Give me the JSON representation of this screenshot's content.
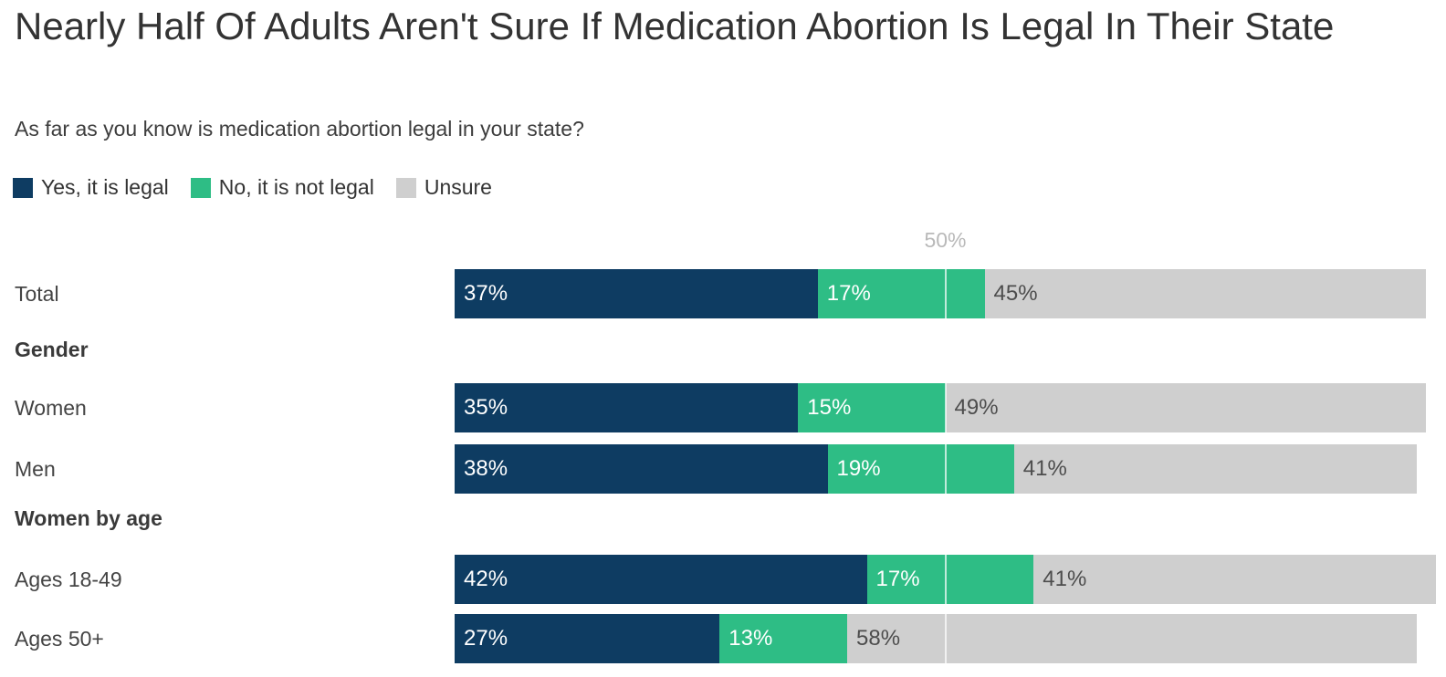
{
  "title": "Nearly Half Of Adults Aren't Sure If Medication Abortion Is Legal In Their State",
  "subtitle": "As far as you know is medication abortion legal in your state?",
  "legend": [
    {
      "label": "Yes, it is legal",
      "color": "#0e3c62",
      "swatch_name": "yes-swatch"
    },
    {
      "label": "No, it is not legal",
      "color": "#2ebd85",
      "swatch_name": "no-swatch"
    },
    {
      "label": "Unsure",
      "color": "#cfcfcf",
      "swatch_name": "unsure-swatch"
    }
  ],
  "colors": {
    "yes": "#0e3c62",
    "no": "#2ebd85",
    "unsure": "#cfcfcf",
    "title_text": "#333333",
    "axis_tick_text": "#b9b9b9",
    "label_on_dark": "#ffffff",
    "label_on_light": "#4d4d4d"
  },
  "chart_data": {
    "type": "bar",
    "orientation": "horizontal",
    "stacked": true,
    "title": "Nearly Half Of Adults Aren't Sure If Medication Abortion Is Legal In Their State",
    "subtitle": "As far as you know is medication abortion legal in your state?",
    "series_names": [
      "Yes, it is legal",
      "No, it is not legal",
      "Unsure"
    ],
    "value_suffix": "%",
    "axis": {
      "min": 0,
      "max": 100,
      "tick_value": 50,
      "tick_label": "50%",
      "gridline": true
    },
    "legend_position": "top",
    "groups": [
      {
        "header": "",
        "rows": [
          {
            "label": "Total",
            "values": [
              37,
              17,
              45
            ]
          }
        ]
      },
      {
        "header": "Gender",
        "rows": [
          {
            "label": "Women",
            "values": [
              35,
              15,
              49
            ]
          },
          {
            "label": "Men",
            "values": [
              38,
              19,
              41
            ]
          }
        ]
      },
      {
        "header": "Women by age",
        "rows": [
          {
            "label": "Ages 18-49",
            "values": [
              42,
              17,
              41
            ]
          },
          {
            "label": "Ages 50+",
            "values": [
              27,
              13,
              58
            ]
          }
        ]
      }
    ]
  }
}
